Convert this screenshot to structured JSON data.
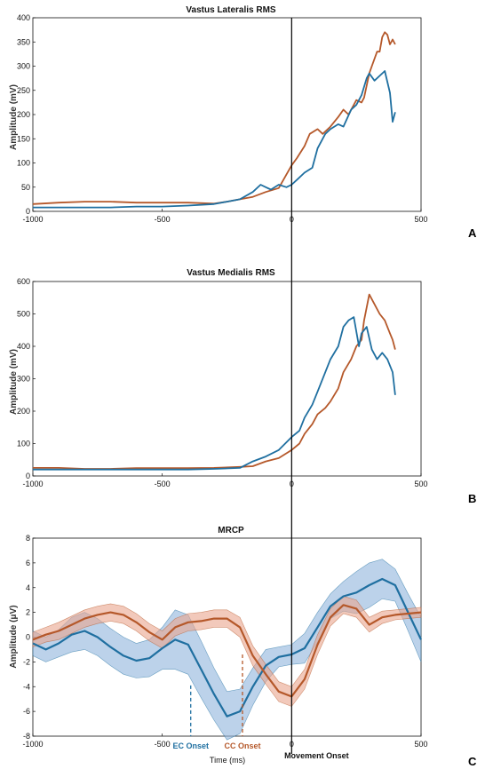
{
  "colors": {
    "ec": "#1f6fa0",
    "cc": "#b5582a",
    "ec_band": "#8fb4dc",
    "cc_band": "#eaa58e",
    "axis": "#111111"
  },
  "panel_labels": [
    "A",
    "B",
    "C"
  ],
  "chart_data": [
    {
      "type": "line",
      "title": "Vastus Lateralis RMS",
      "xlabel": "",
      "ylabel": "Amplitude (mV)",
      "xlim": [
        -1000,
        500
      ],
      "ylim": [
        0,
        400
      ],
      "xticks": [
        -1000,
        -500,
        0,
        500
      ],
      "yticks": [
        0,
        50,
        100,
        150,
        200,
        250,
        300,
        350,
        400
      ],
      "series": [
        {
          "color": "#b5582a",
          "x": [
            -1000,
            -900,
            -800,
            -700,
            -600,
            -500,
            -400,
            -300,
            -250,
            -200,
            -150,
            -100,
            -50,
            0,
            20,
            50,
            70,
            100,
            120,
            150,
            180,
            200,
            220,
            250,
            270,
            280,
            300,
            310,
            330,
            340,
            350,
            360,
            370,
            380,
            390,
            400
          ],
          "y": [
            15,
            18,
            20,
            20,
            18,
            18,
            18,
            16,
            20,
            25,
            30,
            40,
            48,
            95,
            110,
            135,
            160,
            170,
            160,
            175,
            195,
            210,
            200,
            230,
            225,
            235,
            285,
            300,
            330,
            330,
            360,
            370,
            365,
            345,
            355,
            345
          ]
        },
        {
          "color": "#1f6fa0",
          "x": [
            -1000,
            -900,
            -800,
            -700,
            -600,
            -500,
            -400,
            -300,
            -250,
            -200,
            -150,
            -120,
            -100,
            -80,
            -50,
            -20,
            0,
            20,
            50,
            80,
            100,
            130,
            150,
            180,
            200,
            230,
            250,
            270,
            290,
            300,
            320,
            340,
            360,
            380,
            390,
            400
          ],
          "y": [
            8,
            8,
            8,
            8,
            10,
            10,
            12,
            15,
            20,
            25,
            40,
            55,
            50,
            45,
            55,
            50,
            55,
            65,
            80,
            90,
            130,
            160,
            170,
            180,
            175,
            210,
            220,
            240,
            275,
            285,
            270,
            280,
            290,
            245,
            185,
            205
          ]
        }
      ]
    },
    {
      "type": "line",
      "title": "Vastus Medialis RMS",
      "xlabel": "",
      "ylabel": "Amplitude (mV)",
      "xlim": [
        -1000,
        500
      ],
      "ylim": [
        0,
        600
      ],
      "xticks": [
        -1000,
        -500,
        0,
        500
      ],
      "yticks": [
        0,
        100,
        200,
        300,
        400,
        500,
        600
      ],
      "series": [
        {
          "color": "#b5582a",
          "x": [
            -1000,
            -900,
            -800,
            -700,
            -600,
            -500,
            -400,
            -300,
            -200,
            -150,
            -100,
            -50,
            0,
            30,
            50,
            80,
            100,
            130,
            150,
            180,
            200,
            230,
            250,
            270,
            280,
            300,
            320,
            340,
            360,
            380,
            390,
            400
          ],
          "y": [
            25,
            25,
            22,
            22,
            24,
            24,
            24,
            25,
            28,
            30,
            45,
            55,
            80,
            100,
            130,
            160,
            190,
            210,
            230,
            270,
            320,
            360,
            400,
            420,
            480,
            560,
            530,
            500,
            480,
            440,
            420,
            390
          ]
        },
        {
          "color": "#1f6fa0",
          "x": [
            -1000,
            -900,
            -800,
            -700,
            -600,
            -500,
            -400,
            -300,
            -200,
            -150,
            -100,
            -50,
            0,
            30,
            50,
            80,
            100,
            130,
            150,
            180,
            200,
            220,
            240,
            260,
            270,
            290,
            310,
            330,
            350,
            370,
            390,
            400
          ],
          "y": [
            20,
            20,
            20,
            20,
            20,
            20,
            20,
            22,
            25,
            45,
            60,
            80,
            120,
            140,
            180,
            220,
            260,
            320,
            360,
            400,
            460,
            480,
            490,
            400,
            440,
            460,
            390,
            360,
            380,
            360,
            320,
            250
          ]
        }
      ]
    },
    {
      "type": "area",
      "title": "MRCP",
      "xlabel": "Time (ms)",
      "ylabel": "Amplitude (μV)",
      "xlim": [
        -1000,
        500
      ],
      "ylim": [
        -8,
        8
      ],
      "xticks": [
        -1000,
        -500,
        0,
        500
      ],
      "yticks": [
        -8,
        -6,
        -4,
        -2,
        0,
        2,
        4,
        6,
        8
      ],
      "series": [
        {
          "color": "#1f6fa0",
          "band": "#8fb4dc",
          "x": [
            -1000,
            -950,
            -900,
            -850,
            -800,
            -750,
            -700,
            -650,
            -600,
            -550,
            -500,
            -450,
            -400,
            -350,
            -300,
            -250,
            -200,
            -150,
            -100,
            -50,
            0,
            50,
            100,
            150,
            200,
            250,
            300,
            350,
            400,
            450,
            500
          ],
          "y": [
            -0.5,
            -1.0,
            -0.5,
            0.2,
            0.5,
            0.0,
            -0.8,
            -1.5,
            -1.9,
            -1.7,
            -0.9,
            -0.2,
            -0.6,
            -2.6,
            -4.6,
            -6.4,
            -6.0,
            -4.0,
            -2.3,
            -1.6,
            -1.4,
            -0.9,
            0.8,
            2.5,
            3.3,
            3.6,
            4.2,
            4.7,
            4.2,
            2.0,
            -0.2
          ],
          "upper": [
            0.5,
            0.0,
            0.6,
            1.6,
            2.0,
            1.5,
            0.7,
            0.0,
            -0.5,
            -0.2,
            0.8,
            2.2,
            1.8,
            -0.3,
            -2.5,
            -4.4,
            -4.2,
            -2.5,
            -1.0,
            -0.8,
            -0.6,
            0.3,
            2.0,
            3.5,
            4.5,
            5.3,
            6.0,
            6.3,
            5.5,
            3.5,
            1.6
          ],
          "lower": [
            -1.5,
            -2.0,
            -1.6,
            -1.2,
            -1.0,
            -1.5,
            -2.3,
            -3.0,
            -3.3,
            -3.2,
            -2.6,
            -2.6,
            -3.0,
            -4.9,
            -6.7,
            -8.3,
            -7.8,
            -5.5,
            -3.6,
            -2.4,
            -2.2,
            -2.1,
            -0.4,
            1.5,
            2.1,
            1.9,
            2.4,
            3.1,
            2.9,
            0.5,
            -2.0
          ]
        },
        {
          "color": "#b5582a",
          "band": "#eaa58e",
          "x": [
            -1000,
            -950,
            -900,
            -850,
            -800,
            -750,
            -700,
            -650,
            -600,
            -550,
            -500,
            -450,
            -400,
            -350,
            -300,
            -250,
            -200,
            -150,
            -100,
            -50,
            0,
            50,
            100,
            150,
            200,
            250,
            300,
            350,
            400,
            450,
            500
          ],
          "y": [
            -0.2,
            0.2,
            0.5,
            1.0,
            1.5,
            1.8,
            2.0,
            1.8,
            1.2,
            0.4,
            -0.2,
            0.8,
            1.2,
            1.3,
            1.5,
            1.5,
            0.8,
            -1.5,
            -3.0,
            -4.4,
            -4.8,
            -3.4,
            -0.6,
            1.6,
            2.6,
            2.3,
            1.0,
            1.6,
            1.8,
            1.9,
            2.0
          ],
          "upper": [
            0.4,
            0.8,
            1.2,
            1.7,
            2.2,
            2.5,
            2.7,
            2.5,
            1.9,
            1.1,
            0.5,
            1.5,
            1.9,
            2.0,
            2.2,
            2.2,
            1.6,
            -0.7,
            -2.2,
            -3.6,
            -4.0,
            -2.6,
            0.2,
            2.3,
            3.3,
            3.0,
            1.6,
            2.1,
            2.2,
            2.3,
            2.4
          ],
          "lower": [
            -0.8,
            -0.4,
            -0.2,
            0.3,
            0.8,
            1.1,
            1.3,
            1.1,
            0.5,
            -0.3,
            -0.9,
            0.1,
            0.5,
            0.6,
            0.8,
            0.8,
            0.0,
            -2.3,
            -3.8,
            -5.2,
            -5.6,
            -4.2,
            -1.4,
            0.9,
            1.9,
            1.6,
            0.4,
            1.1,
            1.4,
            1.5,
            1.6
          ]
        }
      ],
      "annotations": [
        {
          "label": "EC Onset",
          "x": -390,
          "y": -3.9,
          "color": "#1f6fa0"
        },
        {
          "label": "CC Onset",
          "x": -190,
          "y": -1.4,
          "color": "#b5582a"
        },
        {
          "label": "Movement Onset",
          "x": 0,
          "color": "#111111"
        }
      ]
    }
  ]
}
